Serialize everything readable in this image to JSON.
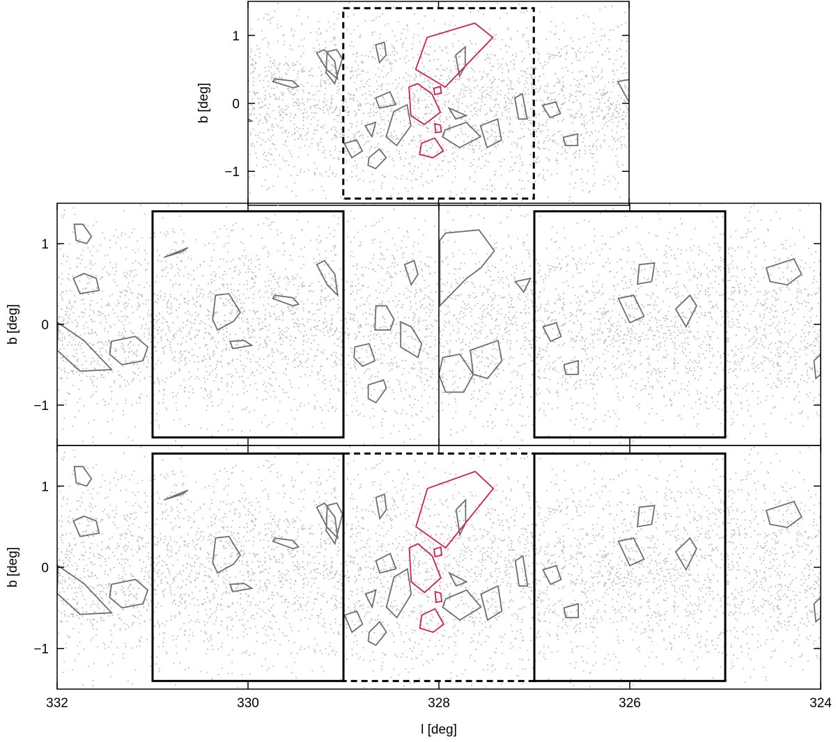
{
  "chart_data": {
    "type": "scatter",
    "xlabel": "l [deg]",
    "ylabel": "b [deg]",
    "xlim": [
      332,
      324
    ],
    "ylim": [
      -1.5,
      1.5
    ],
    "xticks": [
      "332",
      "330",
      "328",
      "326",
      "324"
    ],
    "xtick_values": [
      332,
      330,
      328,
      326,
      324
    ],
    "yticks": [
      "−1",
      "0",
      "1"
    ],
    "ytick_values": [
      -1,
      0,
      1
    ],
    "grid": false,
    "colors": {
      "points": "#bdbdbd",
      "gray_polygons": "#6e6e6e",
      "red_polygons": "#d0204a",
      "boxes": "#000000"
    },
    "panels": [
      {
        "name": "top",
        "xlim": [
          330,
          326
        ],
        "boxes": [
          {
            "l": [
              329,
              327
            ],
            "b": [
              -1.4,
              1.4
            ],
            "style": "dashed"
          }
        ],
        "shows": [
          "set_b",
          "red",
          "set_a_outside_window"
        ]
      },
      {
        "name": "middle",
        "xlim": [
          332,
          324
        ],
        "boxes": [
          {
            "l": [
              331,
              329
            ],
            "b": [
              -1.4,
              1.4
            ],
            "style": "solid"
          },
          {
            "l": [
              327,
              325
            ],
            "b": [
              -1.4,
              1.4
            ],
            "style": "solid"
          }
        ],
        "divider_l": 328,
        "shows": [
          "set_a"
        ]
      },
      {
        "name": "bottom",
        "xlim": [
          332,
          324
        ],
        "boxes": [
          {
            "l": [
              331,
              329
            ],
            "b": [
              -1.4,
              1.4
            ],
            "style": "solid"
          },
          {
            "l": [
              329,
              327
            ],
            "b": [
              -1.4,
              1.4
            ],
            "style": "dashed"
          },
          {
            "l": [
              327,
              325
            ],
            "b": [
              -1.4,
              1.4
            ],
            "style": "solid"
          }
        ],
        "shows": [
          "set_a_outside_window",
          "set_b",
          "red"
        ]
      }
    ],
    "window": [
      327,
      329
    ],
    "polygons": {
      "red": [
        [
          [
            328.24,
            0.5
          ],
          [
            328.12,
            0.97
          ],
          [
            327.62,
            1.18
          ],
          [
            327.43,
            0.97
          ],
          [
            327.93,
            0.24
          ]
        ],
        [
          [
            328.31,
            0.24
          ],
          [
            328.22,
            0.29
          ],
          [
            328.07,
            0.14
          ],
          [
            327.98,
            -0.13
          ],
          [
            328.15,
            -0.31
          ],
          [
            328.29,
            -0.18
          ]
        ],
        [
          [
            328.05,
            0.22
          ],
          [
            327.98,
            0.25
          ],
          [
            327.97,
            0.15
          ],
          [
            328.04,
            0.13
          ]
        ],
        [
          [
            328.04,
            -0.3
          ],
          [
            327.98,
            -0.32
          ],
          [
            327.97,
            -0.42
          ],
          [
            328.03,
            -0.43
          ]
        ],
        [
          [
            328.18,
            -0.59
          ],
          [
            328.04,
            -0.51
          ],
          [
            327.95,
            -0.7
          ],
          [
            328.06,
            -0.8
          ],
          [
            328.2,
            -0.75
          ]
        ]
      ],
      "set_a": [
        [
          [
            331.82,
            1.24
          ],
          [
            331.73,
            1.24
          ],
          [
            331.64,
            1.09
          ],
          [
            331.69,
            1.0
          ],
          [
            331.8,
            1.04
          ]
        ],
        [
          [
            332,
            -0.32
          ],
          [
            331.99,
            0.02
          ],
          [
            331.72,
            -0.2
          ],
          [
            331.43,
            -0.56
          ],
          [
            331.76,
            -0.58
          ]
        ],
        [
          [
            331.83,
            0.57
          ],
          [
            331.72,
            0.63
          ],
          [
            331.59,
            0.57
          ],
          [
            331.56,
            0.42
          ],
          [
            331.76,
            0.38
          ]
        ],
        [
          [
            330.34,
            0.36
          ],
          [
            330.2,
            0.38
          ],
          [
            330.08,
            0.15
          ],
          [
            330.15,
            0.04
          ],
          [
            330.32,
            -0.07
          ],
          [
            330.37,
            0.06
          ]
        ],
        [
          [
            329.28,
            0.74
          ],
          [
            329.2,
            0.79
          ],
          [
            329.09,
            0.62
          ],
          [
            329.06,
            0.36
          ],
          [
            329.17,
            0.49
          ]
        ],
        [
          [
            327.99,
            1.04
          ],
          [
            327.93,
            1.13
          ],
          [
            327.58,
            1.17
          ],
          [
            327.42,
            0.91
          ],
          [
            327.56,
            0.7
          ],
          [
            327.71,
            0.57
          ],
          [
            327.99,
            0.23
          ]
        ],
        [
          [
            328.66,
            0.23
          ],
          [
            328.55,
            0.23
          ],
          [
            328.47,
            0.06
          ],
          [
            328.51,
            -0.07
          ],
          [
            328.67,
            -0.07
          ]
        ],
        [
          [
            328.4,
            0.03
          ],
          [
            328.29,
            -0.03
          ],
          [
            328.18,
            -0.24
          ],
          [
            328.22,
            -0.41
          ],
          [
            328.4,
            -0.28
          ]
        ],
        [
          [
            327.96,
            -0.41
          ],
          [
            327.78,
            -0.37
          ],
          [
            327.64,
            -0.62
          ],
          [
            327.74,
            -0.84
          ],
          [
            327.93,
            -0.84
          ],
          [
            328.0,
            -0.62
          ]
        ],
        [
          [
            327.67,
            -0.32
          ],
          [
            327.38,
            -0.2
          ],
          [
            327.34,
            -0.45
          ],
          [
            327.49,
            -0.67
          ],
          [
            327.64,
            -0.62
          ]
        ],
        [
          [
            324.57,
            0.7
          ],
          [
            324.28,
            0.81
          ],
          [
            324.2,
            0.62
          ],
          [
            324.35,
            0.49
          ],
          [
            324.53,
            0.53
          ]
        ],
        [
          [
            326.91,
            -0.03
          ],
          [
            326.77,
            0.02
          ],
          [
            326.72,
            -0.15
          ],
          [
            326.83,
            -0.21
          ]
        ],
        [
          [
            325.9,
            0.74
          ],
          [
            325.74,
            0.76
          ],
          [
            325.77,
            0.53
          ],
          [
            325.92,
            0.5
          ]
        ],
        [
          [
            325.52,
            0.19
          ],
          [
            325.37,
            0.36
          ],
          [
            325.3,
            0.23
          ],
          [
            325.41,
            -0.03
          ]
        ],
        [
          [
            326.12,
            0.32
          ],
          [
            325.96,
            0.36
          ],
          [
            325.85,
            0.1
          ],
          [
            326.0,
            0.02
          ]
        ],
        [
          [
            326.69,
            -0.5
          ],
          [
            326.54,
            -0.45
          ],
          [
            326.54,
            -0.62
          ],
          [
            326.67,
            -0.62
          ]
        ],
        [
          [
            324.07,
            -0.45
          ],
          [
            324.0,
            -0.37
          ],
          [
            324.0,
            -0.62
          ],
          [
            324.05,
            -0.67
          ]
        ],
        [
          [
            330.88,
            0.83
          ],
          [
            330.63,
            0.95
          ],
          [
            330.69,
            0.9
          ]
        ],
        [
          [
            330.19,
            -0.21
          ],
          [
            330.04,
            -0.2
          ],
          [
            329.96,
            -0.26
          ],
          [
            330.16,
            -0.3
          ]
        ],
        [
          [
            329.72,
            0.36
          ],
          [
            329.53,
            0.33
          ],
          [
            329.47,
            0.25
          ],
          [
            329.53,
            0.23
          ],
          [
            329.74,
            0.32
          ]
        ],
        [
          [
            331.43,
            -0.21
          ],
          [
            331.18,
            -0.15
          ],
          [
            331.05,
            -0.28
          ],
          [
            331.1,
            -0.45
          ],
          [
            331.32,
            -0.5
          ],
          [
            331.45,
            -0.37
          ]
        ],
        [
          [
            328.88,
            -0.28
          ],
          [
            328.73,
            -0.24
          ],
          [
            328.67,
            -0.45
          ],
          [
            328.8,
            -0.52
          ],
          [
            328.89,
            -0.41
          ]
        ],
        [
          [
            328.74,
            -0.75
          ],
          [
            328.58,
            -0.69
          ],
          [
            328.55,
            -0.79
          ],
          [
            328.66,
            -0.97
          ],
          [
            328.74,
            -0.92
          ]
        ],
        [
          [
            328.36,
            0.74
          ],
          [
            328.26,
            0.79
          ],
          [
            328.22,
            0.62
          ],
          [
            328.29,
            0.49
          ]
        ],
        [
          [
            327.2,
            0.53
          ],
          [
            327.04,
            0.57
          ],
          [
            327.11,
            0.4
          ]
        ]
      ],
      "set_b": [
        [
          [
            329.17,
            0.76
          ],
          [
            329.07,
            0.79
          ],
          [
            329.01,
            0.66
          ],
          [
            329.09,
            0.29
          ],
          [
            329.18,
            0.45
          ]
        ],
        [
          [
            328.66,
            0.86
          ],
          [
            328.57,
            0.9
          ],
          [
            328.55,
            0.71
          ],
          [
            328.62,
            0.6
          ]
        ],
        [
          [
            327.82,
            0.71
          ],
          [
            327.72,
            0.83
          ],
          [
            327.72,
            0.55
          ],
          [
            327.78,
            0.4
          ]
        ],
        [
          [
            328.66,
            0.08
          ],
          [
            328.51,
            0.17
          ],
          [
            328.45,
            -0.02
          ],
          [
            328.62,
            -0.07
          ]
        ],
        [
          [
            328.47,
            -0.12
          ],
          [
            328.33,
            -0.02
          ],
          [
            328.29,
            -0.33
          ],
          [
            328.44,
            -0.62
          ],
          [
            328.55,
            -0.49
          ]
        ],
        [
          [
            327.93,
            -0.39
          ],
          [
            327.71,
            -0.28
          ],
          [
            327.56,
            -0.49
          ],
          [
            327.78,
            -0.65
          ],
          [
            327.96,
            -0.49
          ]
        ],
        [
          [
            327.56,
            -0.33
          ],
          [
            327.38,
            -0.23
          ],
          [
            327.34,
            -0.54
          ],
          [
            327.49,
            -0.65
          ]
        ],
        [
          [
            328.73,
            -0.8
          ],
          [
            328.62,
            -0.67
          ],
          [
            328.55,
            -0.8
          ],
          [
            328.66,
            -0.96
          ],
          [
            328.74,
            -0.91
          ]
        ],
        [
          [
            328.99,
            -0.59
          ],
          [
            328.86,
            -0.54
          ],
          [
            328.8,
            -0.7
          ],
          [
            328.91,
            -0.8
          ]
        ],
        [
          [
            327.2,
            0.08
          ],
          [
            327.12,
            0.14
          ],
          [
            327.07,
            -0.23
          ],
          [
            327.16,
            -0.23
          ]
        ],
        [
          [
            327.89,
            -0.07
          ],
          [
            327.71,
            -0.18
          ],
          [
            327.82,
            -0.23
          ]
        ],
        [
          [
            328.77,
            -0.33
          ],
          [
            328.66,
            -0.28
          ],
          [
            328.7,
            -0.49
          ]
        ]
      ]
    }
  }
}
